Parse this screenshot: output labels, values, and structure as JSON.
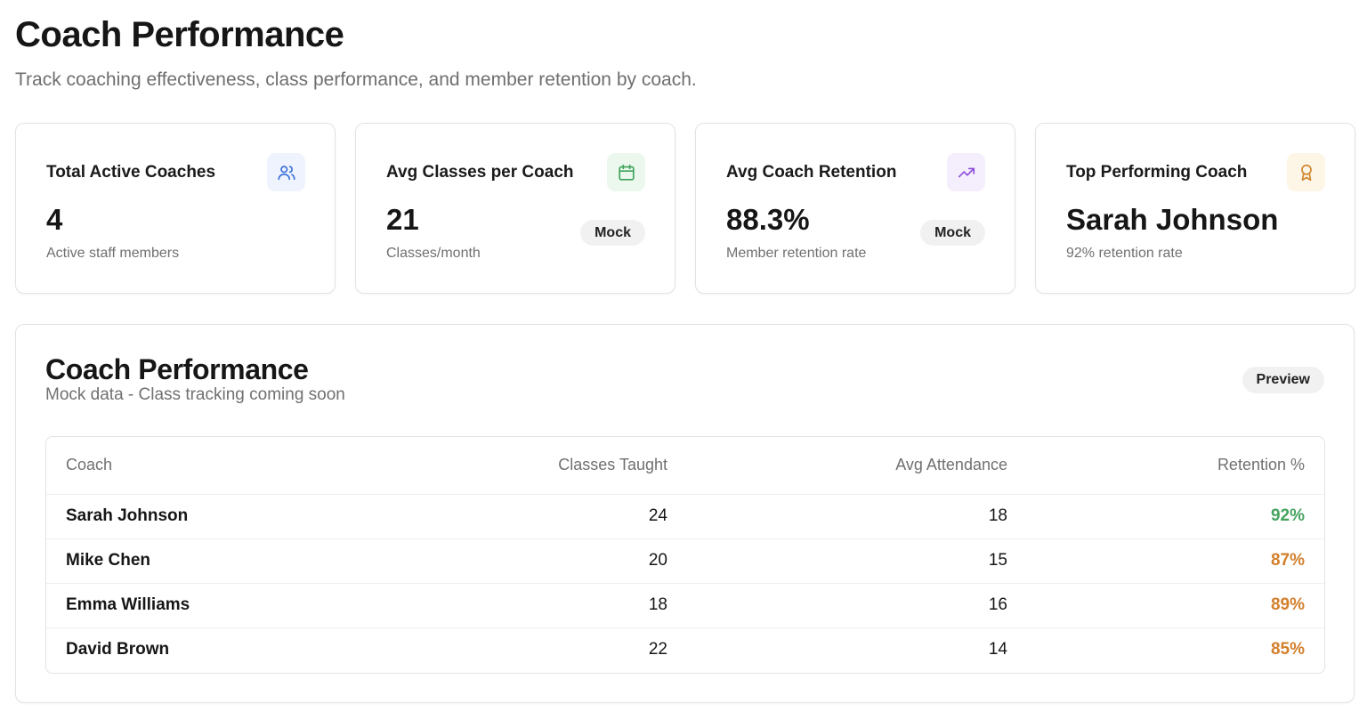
{
  "header": {
    "title": "Coach Performance",
    "subtitle": "Track coaching effectiveness, class performance, and member retention by coach."
  },
  "stats": [
    {
      "label": "Total Active Coaches",
      "value": "4",
      "sub": "Active staff members",
      "icon": "users-icon",
      "icon_bg": "#eef3fd",
      "icon_color": "#3b6fd8",
      "badge": ""
    },
    {
      "label": "Avg Classes per Coach",
      "value": "21",
      "sub": "Classes/month",
      "icon": "calendar-icon",
      "icon_bg": "#ecf8ee",
      "icon_color": "#3fa35a",
      "badge": "Mock"
    },
    {
      "label": "Avg Coach Retention",
      "value": "88.3%",
      "sub": "Member retention rate",
      "icon": "trending-up-icon",
      "icon_bg": "#f4eefd",
      "icon_color": "#8e4fd9",
      "badge": "Mock"
    },
    {
      "label": "Top Performing Coach",
      "value": "Sarah Johnson",
      "sub": "92% retention rate",
      "icon": "award-icon",
      "icon_bg": "#fdf6e7",
      "icon_color": "#d2852e",
      "badge": ""
    }
  ],
  "panel": {
    "title": "Coach Performance",
    "subtitle": "Mock data - Class tracking coming soon",
    "badge": "Preview"
  },
  "table": {
    "columns": [
      "Coach",
      "Classes Taught",
      "Avg Attendance",
      "Retention %"
    ],
    "rows": [
      {
        "coach": "Sarah Johnson",
        "classes": "24",
        "attendance": "18",
        "retention": "92%",
        "retention_color": "#46a35e"
      },
      {
        "coach": "Mike Chen",
        "classes": "20",
        "attendance": "15",
        "retention": "87%",
        "retention_color": "#d27f2c"
      },
      {
        "coach": "Emma Williams",
        "classes": "18",
        "attendance": "16",
        "retention": "89%",
        "retention_color": "#d27f2c"
      },
      {
        "coach": "David Brown",
        "classes": "22",
        "attendance": "14",
        "retention": "85%",
        "retention_color": "#d27f2c"
      }
    ]
  }
}
